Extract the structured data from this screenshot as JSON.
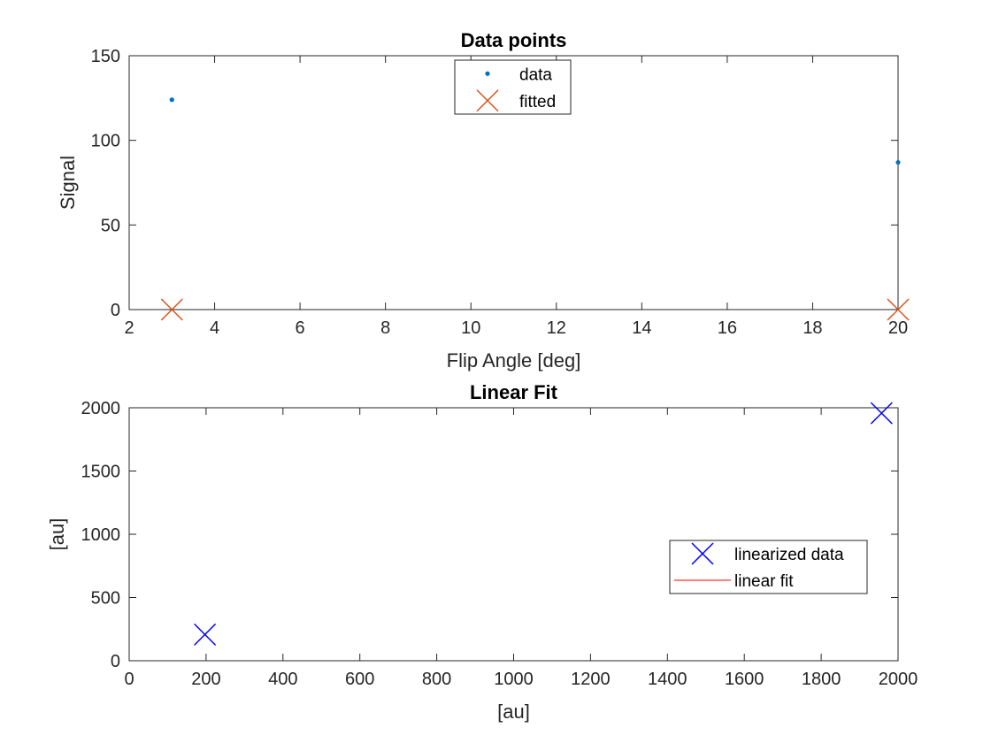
{
  "chart_data": [
    {
      "type": "scatter",
      "title": "Data points",
      "xlabel": "Flip Angle [deg]",
      "ylabel": "Signal",
      "xlim": [
        2,
        20
      ],
      "ylim": [
        0,
        150
      ],
      "xticks": [
        2,
        4,
        6,
        8,
        10,
        12,
        14,
        16,
        18,
        20
      ],
      "yticks": [
        0,
        50,
        100,
        150
      ],
      "grid": false,
      "legend_location": "top-center",
      "series": [
        {
          "name": "data",
          "marker": "dot",
          "color": "#0072BD",
          "x": [
            3,
            20
          ],
          "y": [
            124,
            87
          ]
        },
        {
          "name": "fitted",
          "marker": "x",
          "color": "#D95319",
          "x": [
            3,
            20
          ],
          "y": [
            0,
            0
          ]
        }
      ]
    },
    {
      "type": "scatter",
      "title": "Linear Fit",
      "xlabel": "[au]",
      "ylabel": "[au]",
      "xlim": [
        0,
        2000
      ],
      "ylim": [
        0,
        2000
      ],
      "xticks": [
        0,
        200,
        400,
        600,
        800,
        1000,
        1200,
        1400,
        1600,
        1800,
        2000
      ],
      "yticks": [
        0,
        500,
        1000,
        1500,
        2000
      ],
      "grid": false,
      "legend_location": "center-right",
      "series": [
        {
          "name": "linearized data",
          "marker": "x",
          "color": "#0000FF",
          "x": [
            197,
            1957
          ],
          "y": [
            207,
            1957
          ]
        },
        {
          "name": "linear fit",
          "marker": "line",
          "color": "#FF0000",
          "x": [],
          "y": []
        }
      ]
    }
  ]
}
